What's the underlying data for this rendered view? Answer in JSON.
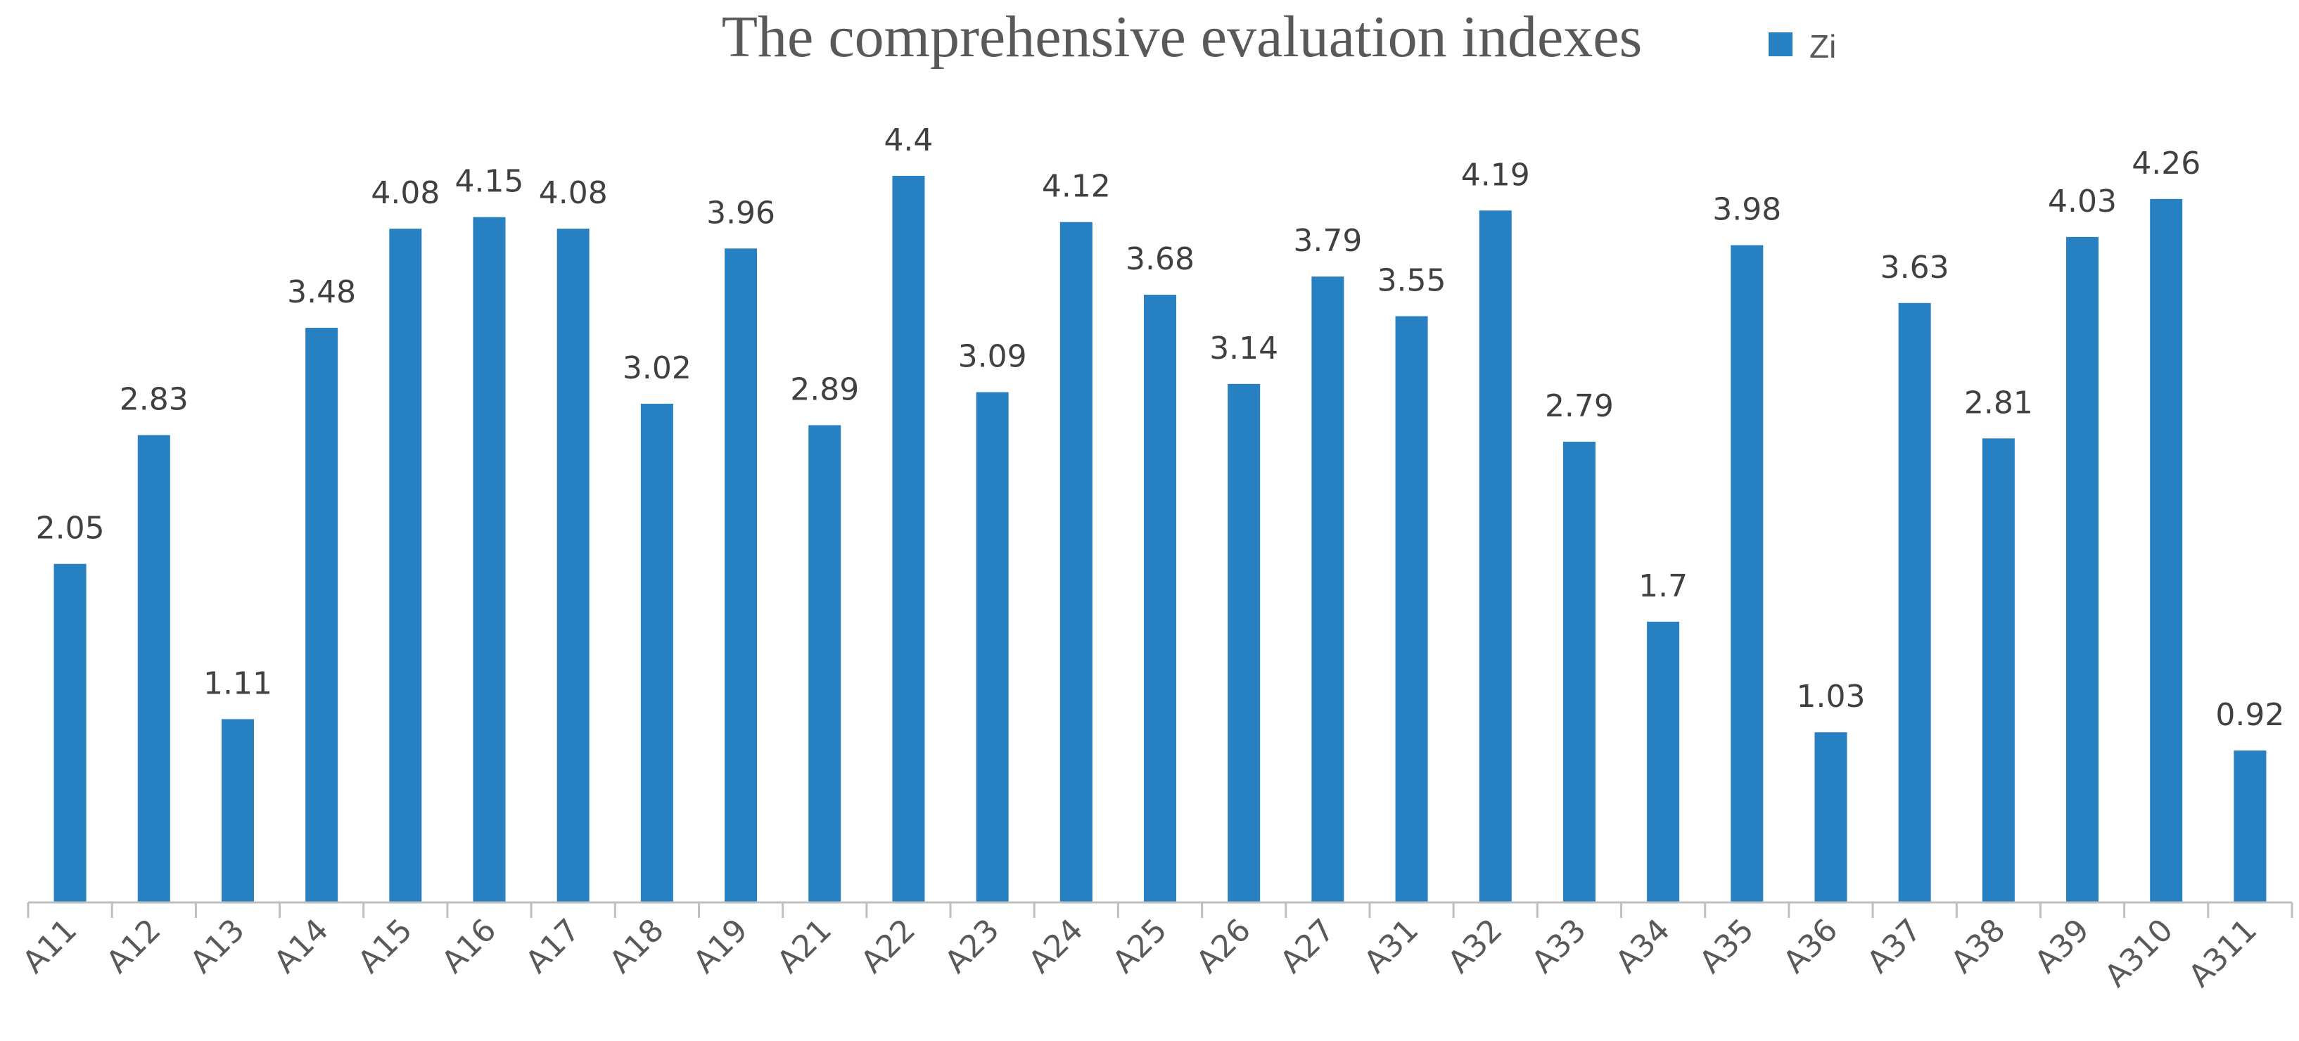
{
  "chart_data": {
    "type": "bar",
    "title": "The comprehensive evaluation indexes",
    "xlabel": "",
    "ylabel": "",
    "ylim": [
      0,
      4.4
    ],
    "grid": false,
    "legend": {
      "position": "top-right",
      "entries": [
        "Zi"
      ]
    },
    "categories": [
      "A11",
      "A12",
      "A13",
      "A14",
      "A15",
      "A16",
      "A17",
      "A18",
      "A19",
      "A21",
      "A22",
      "A23",
      "A24",
      "A25",
      "A26",
      "A27",
      "A31",
      "A32",
      "A33",
      "A34",
      "A35",
      "A36",
      "A37",
      "A38",
      "A39",
      "A310",
      "A311"
    ],
    "series": [
      {
        "name": "Zi",
        "color": "#2680c2",
        "values": [
          2.05,
          2.83,
          1.11,
          3.48,
          4.08,
          4.15,
          4.08,
          3.02,
          3.96,
          2.89,
          4.4,
          3.09,
          4.12,
          3.68,
          3.14,
          3.79,
          3.55,
          4.19,
          2.79,
          1.7,
          3.98,
          1.03,
          3.63,
          2.81,
          4.03,
          4.26,
          0.92
        ],
        "labels": [
          "2.05",
          "2.83",
          "1.11",
          "3.48",
          "4.08",
          "4.15",
          "4.08",
          "3.02",
          "3.96",
          "2.89",
          "4.4",
          "3.09",
          "4.12",
          "3.68",
          "3.14",
          "3.79",
          "3.55",
          "4.19",
          "2.79",
          "1.7",
          "3.98",
          "1.03",
          "3.63",
          "2.81",
          "4.03",
          "4.26",
          "0.92"
        ]
      }
    ]
  },
  "colors": {
    "bar": "#2680c2",
    "axis": "#bfbfbf",
    "text": "#595959"
  }
}
